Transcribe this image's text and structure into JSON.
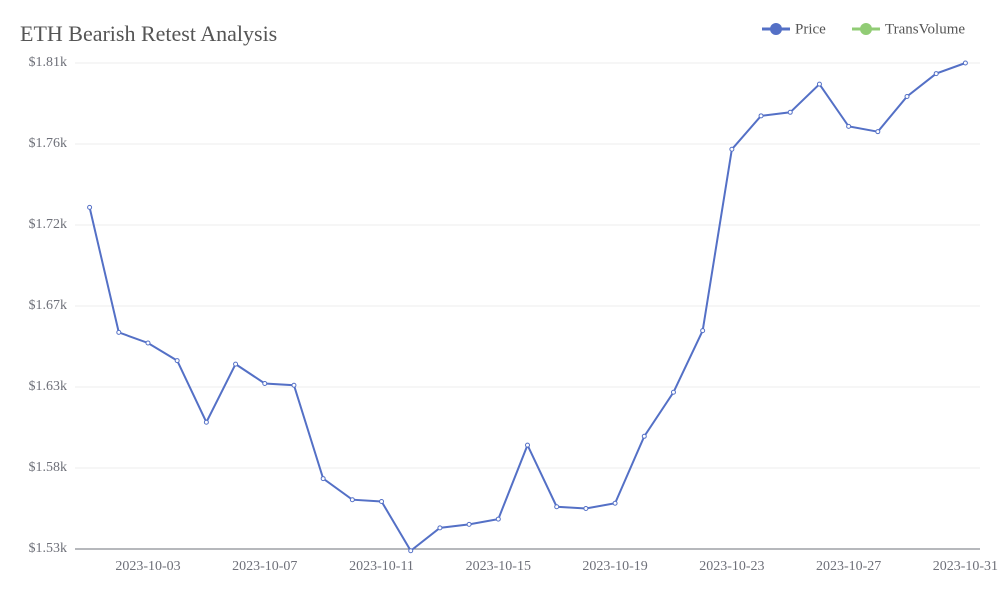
{
  "chart_data": {
    "type": "line",
    "title": "ETH Bearish Retest Analysis",
    "categories": [
      null,
      null,
      "2023-10-03",
      null,
      null,
      null,
      "2023-10-07",
      null,
      null,
      null,
      "2023-10-11",
      null,
      null,
      null,
      "2023-10-15",
      null,
      null,
      null,
      "2023-10-19",
      null,
      null,
      null,
      "2023-10-23",
      null,
      null,
      null,
      "2023-10-27",
      null,
      null,
      null,
      "2023-10-31"
    ],
    "series": [
      {
        "name": "Price",
        "color": "#5470c6",
        "values": [
          1728,
          1657,
          1651,
          1641,
          1606,
          1639,
          1628,
          1627,
          1574,
          1562,
          1561,
          1533,
          1546,
          1548,
          1551,
          1593,
          1558,
          1557,
          1560,
          1598,
          1623,
          1658,
          1761,
          1780,
          1782,
          1798,
          1774,
          1771,
          1791,
          1804,
          1810
        ]
      },
      {
        "name": "TransVolume",
        "color": "#91cc75",
        "values": [
          null,
          null,
          null,
          null,
          null,
          null,
          null,
          null,
          null,
          null,
          null,
          null,
          null,
          null,
          null,
          null,
          null,
          null,
          null,
          null,
          null,
          null,
          null,
          null,
          null,
          null,
          null,
          null,
          null,
          null,
          null
        ]
      }
    ],
    "ylim": [
      1534,
      1810
    ],
    "yticks": [
      {
        "value": 1534,
        "label": "$1.53k"
      },
      {
        "value": 1580,
        "label": "$1.58k"
      },
      {
        "value": 1626,
        "label": "$1.63k"
      },
      {
        "value": 1672,
        "label": "$1.67k"
      },
      {
        "value": 1718,
        "label": "$1.72k"
      },
      {
        "value": 1764,
        "label": "$1.76k"
      },
      {
        "value": 1810,
        "label": "$1.81k"
      }
    ],
    "grid": true
  }
}
